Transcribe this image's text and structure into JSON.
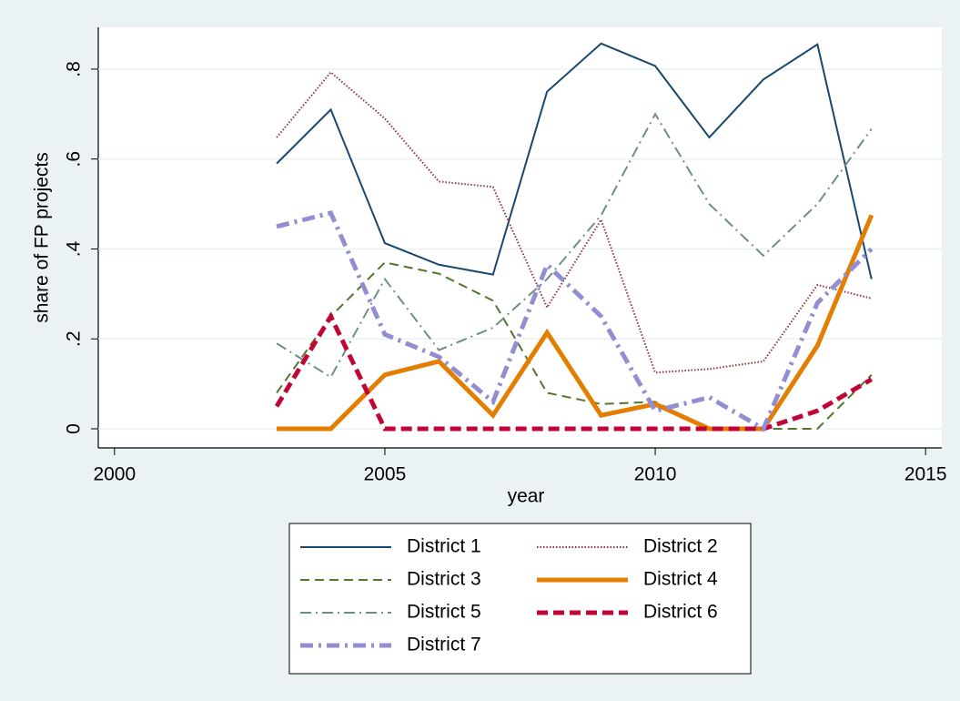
{
  "chart_data": {
    "type": "line",
    "x": [
      2003,
      2004,
      2005,
      2006,
      2007,
      2008,
      2009,
      2010,
      2011,
      2012,
      2013,
      2014
    ],
    "series": [
      {
        "name": "District 1",
        "color": "#1a476f",
        "values": [
          0.59,
          0.71,
          0.413,
          0.365,
          0.343,
          0.75,
          0.857,
          0.807,
          0.648,
          0.777,
          0.855,
          0.333
        ]
      },
      {
        "name": "District 2",
        "color": "#90353b",
        "values": [
          0.648,
          0.793,
          0.69,
          0.55,
          0.538,
          0.27,
          0.465,
          0.125,
          0.133,
          0.15,
          0.32,
          0.29
        ]
      },
      {
        "name": "District 3",
        "color": "#55752f",
        "values": [
          0.08,
          0.25,
          0.37,
          0.345,
          0.285,
          0.08,
          0.055,
          0.06,
          0,
          0,
          0,
          0.12
        ]
      },
      {
        "name": "District 4",
        "color": "#e37e00",
        "values": [
          0,
          0,
          0.12,
          0.15,
          0.03,
          0.214,
          0.03,
          0.055,
          0,
          0,
          0.185,
          0.475
        ]
      },
      {
        "name": "District 5",
        "color": "#6e8e84",
        "values": [
          0.19,
          0.115,
          0.333,
          0.175,
          0.225,
          0.333,
          0.475,
          0.7,
          0.5,
          0.385,
          0.5,
          0.667
        ]
      },
      {
        "name": "District 6",
        "color": "#c10534",
        "values": [
          0.05,
          0.25,
          0,
          0,
          0,
          0,
          0,
          0,
          0,
          0,
          0.04,
          0.11
        ]
      },
      {
        "name": "District 7",
        "color": "#938dd2",
        "values": [
          0.45,
          0.48,
          0.21,
          0.16,
          0.06,
          0.365,
          0.25,
          0.04,
          0.07,
          0,
          0.28,
          0.4
        ]
      }
    ],
    "xlabel": "year",
    "ylabel": "share of FP projects",
    "xlim": [
      1999.7,
      2015.3
    ],
    "xticks": [
      2000,
      2005,
      2010,
      2015
    ],
    "ylim": [
      -0.0425,
      0.893
    ],
    "yticks": [
      0,
      {
        "value": 0.2,
        "label": ".2"
      },
      {
        "value": 0.4,
        "label": ".4"
      },
      {
        "value": 0.6,
        "label": ".6"
      },
      {
        "value": 0.8,
        "label": ".8"
      }
    ],
    "grid": true
  }
}
